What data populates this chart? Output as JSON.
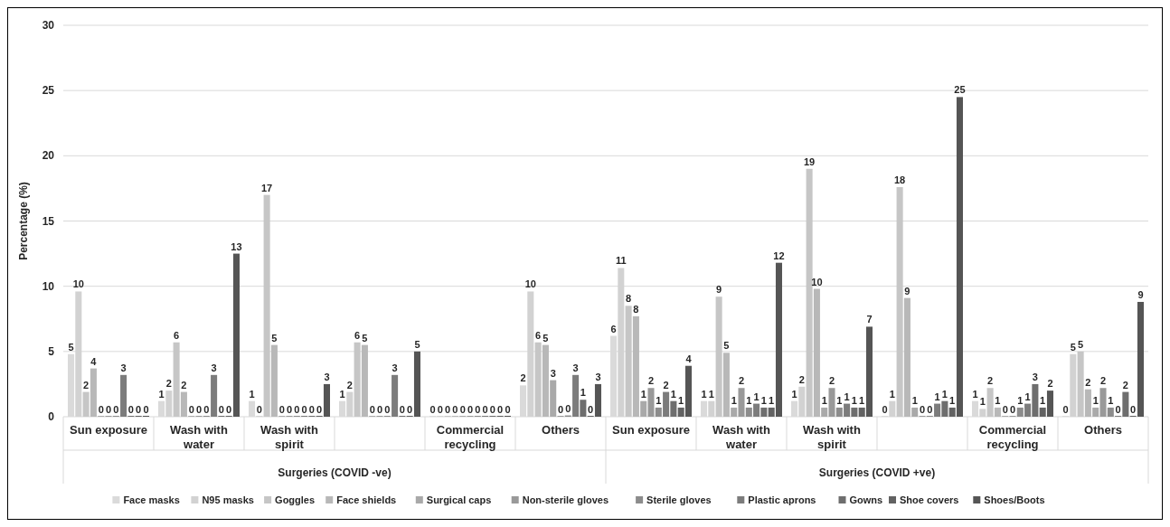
{
  "chart_data": {
    "type": "bar",
    "ylabel": "Percentage (%)",
    "ylim": [
      0,
      30
    ],
    "yticks": [
      0,
      5,
      10,
      15,
      20,
      25,
      30
    ],
    "grid": "y",
    "legend": "bottom",
    "categories": [
      "Sun exposure",
      "Wash with water",
      "Wash with spirit",
      null,
      "Commercial recycling",
      "Others",
      "Sun exposure",
      "Wash with water",
      "Wash with spirit",
      null,
      "Commercial recycling",
      "Others"
    ],
    "annotations": [
      "Surgeries (COVID -ve)",
      "Surgeries (COVID +ve)"
    ],
    "series": [
      {
        "name": "Face masks",
        "color": "#dadada",
        "values": [
          4.8,
          1.2,
          1.2,
          1.2,
          0,
          2.4,
          6.2,
          1.2,
          1.2,
          0,
          1.2,
          0
        ],
        "value_labels": [
          "5",
          "1",
          "1",
          "1",
          "0",
          "2",
          "6",
          "1",
          "1",
          "0",
          "1",
          "0"
        ]
      },
      {
        "name": "N95 masks",
        "color": "#d2d2d2",
        "values": [
          9.6,
          2.0,
          0,
          1.9,
          0,
          9.6,
          11.4,
          1.2,
          2.3,
          1.2,
          0.6,
          4.8
        ],
        "value_labels": [
          "10",
          "2",
          "0",
          "2",
          "0",
          "10",
          "11",
          "1",
          "2",
          "1",
          "1",
          "5"
        ]
      },
      {
        "name": "Goggles",
        "color": "#c6c6c6",
        "values": [
          1.9,
          5.7,
          17.0,
          5.7,
          0,
          5.7,
          8.5,
          9.2,
          19.0,
          17.6,
          2.2,
          5.0
        ],
        "value_labels": [
          "2",
          "6",
          "17",
          "6",
          "0",
          "6",
          "8",
          "9",
          "19",
          "18",
          "2",
          "5"
        ]
      },
      {
        "name": "Face shields",
        "color": "#b8b8b8",
        "values": [
          3.7,
          1.9,
          5.5,
          5.5,
          0,
          5.5,
          7.7,
          4.9,
          9.8,
          9.1,
          0.7,
          2.1
        ],
        "value_labels": [
          "4",
          "2",
          "5",
          "5",
          "0",
          "5",
          "8",
          "5",
          "10",
          "9",
          "1",
          "2"
        ]
      },
      {
        "name": "Surgical caps",
        "color": "#a9a9a9",
        "values": [
          0,
          0,
          0,
          0,
          0,
          2.8,
          1.2,
          0.7,
          0.7,
          0.7,
          0,
          0.7
        ],
        "value_labels": [
          "0",
          "0",
          "0",
          "0",
          "0",
          "3",
          "1",
          "1",
          "1",
          "1",
          "0",
          "1"
        ]
      },
      {
        "name": "Non-sterile gloves",
        "color": "#999999",
        "values": [
          0,
          0,
          0,
          0,
          0,
          0,
          2.2,
          2.2,
          2.2,
          0,
          0,
          2.2
        ],
        "value_labels": [
          "0",
          "0",
          "0",
          "0",
          "0",
          "0",
          "2",
          "2",
          "2",
          "0",
          "0",
          "2"
        ]
      },
      {
        "name": "Sterile gloves",
        "color": "#8c8c8c",
        "values": [
          0,
          0,
          0,
          0,
          0,
          0.1,
          0.7,
          0.7,
          0.7,
          0,
          0.7,
          0.7
        ],
        "value_labels": [
          "0",
          "0",
          "0",
          "0",
          "0",
          "0",
          "1",
          "1",
          "1",
          "0",
          "1",
          "1"
        ]
      },
      {
        "name": "Plastic aprons",
        "color": "#7c7c7c",
        "values": [
          3.2,
          3.2,
          0,
          3.2,
          0,
          3.2,
          1.9,
          1.0,
          1.0,
          1.0,
          1.0,
          0
        ],
        "value_labels": [
          "3",
          "3",
          "0",
          "3",
          "0",
          "3",
          "2",
          "1",
          "1",
          "1",
          "1",
          "0"
        ]
      },
      {
        "name": "Gowns",
        "color": "#6e6e6e",
        "values": [
          0,
          0,
          0,
          0,
          0,
          1.3,
          1.2,
          0.7,
          0.7,
          1.2,
          2.5,
          1.9
        ],
        "value_labels": [
          "0",
          "0",
          "0",
          "0",
          "0",
          "1",
          "1",
          "1",
          "1",
          "1",
          "3",
          "2"
        ]
      },
      {
        "name": "Shoe covers",
        "color": "#626262",
        "values": [
          0,
          0,
          0,
          0,
          0,
          0,
          0.7,
          0.7,
          0.7,
          0.7,
          0.7,
          0
        ],
        "value_labels": [
          "0",
          "0",
          "0",
          "0",
          "0",
          "0",
          "1",
          "1",
          "1",
          "1",
          "1",
          "0"
        ]
      },
      {
        "name": "Shoes/Boots",
        "color": "#555555",
        "values": [
          0,
          12.5,
          2.5,
          5.0,
          0,
          2.5,
          3.9,
          11.8,
          6.9,
          24.5,
          2.0,
          8.8
        ],
        "value_labels": [
          "0",
          "13",
          "3",
          "5",
          "0",
          "3",
          "4",
          "12",
          "7",
          "25",
          "2",
          "9"
        ]
      }
    ]
  }
}
